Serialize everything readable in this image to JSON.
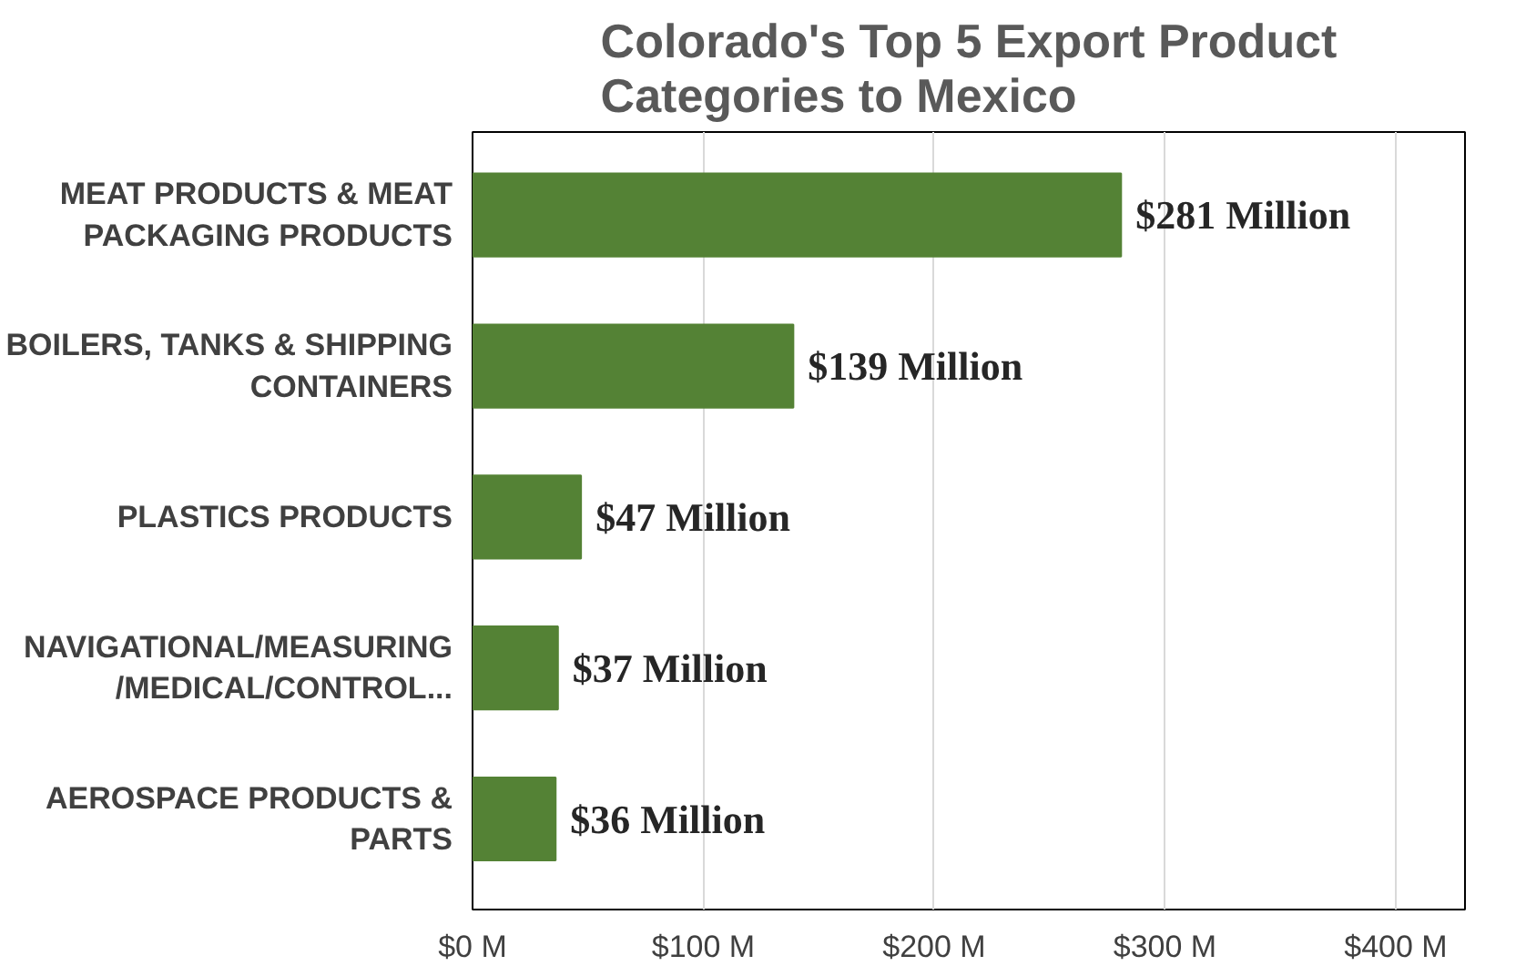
{
  "chart_data": {
    "type": "bar",
    "orientation": "horizontal",
    "title": "Colorado's Top 5 Export Product\nCategories to Mexico",
    "categories": [
      "MEAT PRODUCTS & MEAT\nPACKAGING PRODUCTS",
      "BOILERS, TANKS & SHIPPING\nCONTAINERS",
      "PLASTICS PRODUCTS",
      "NAVIGATIONAL/MEASURING\n/MEDICAL/CONTROL...",
      "AEROSPACE PRODUCTS &\nPARTS"
    ],
    "values": [
      281,
      139,
      47,
      37,
      36
    ],
    "value_labels": [
      "$281 Million",
      "$139 Million",
      "$47 Million",
      "$37 Million",
      "$36 Million"
    ],
    "color": "#548235",
    "xlim": [
      0,
      430
    ],
    "xticks": [
      {
        "value": 0,
        "label": "$0 M"
      },
      {
        "value": 100,
        "label": "$100 M"
      },
      {
        "value": 200,
        "label": "$200 M"
      },
      {
        "value": 300,
        "label": "$300 M"
      },
      {
        "value": 400,
        "label": "$400 M"
      }
    ],
    "grid": "x"
  }
}
